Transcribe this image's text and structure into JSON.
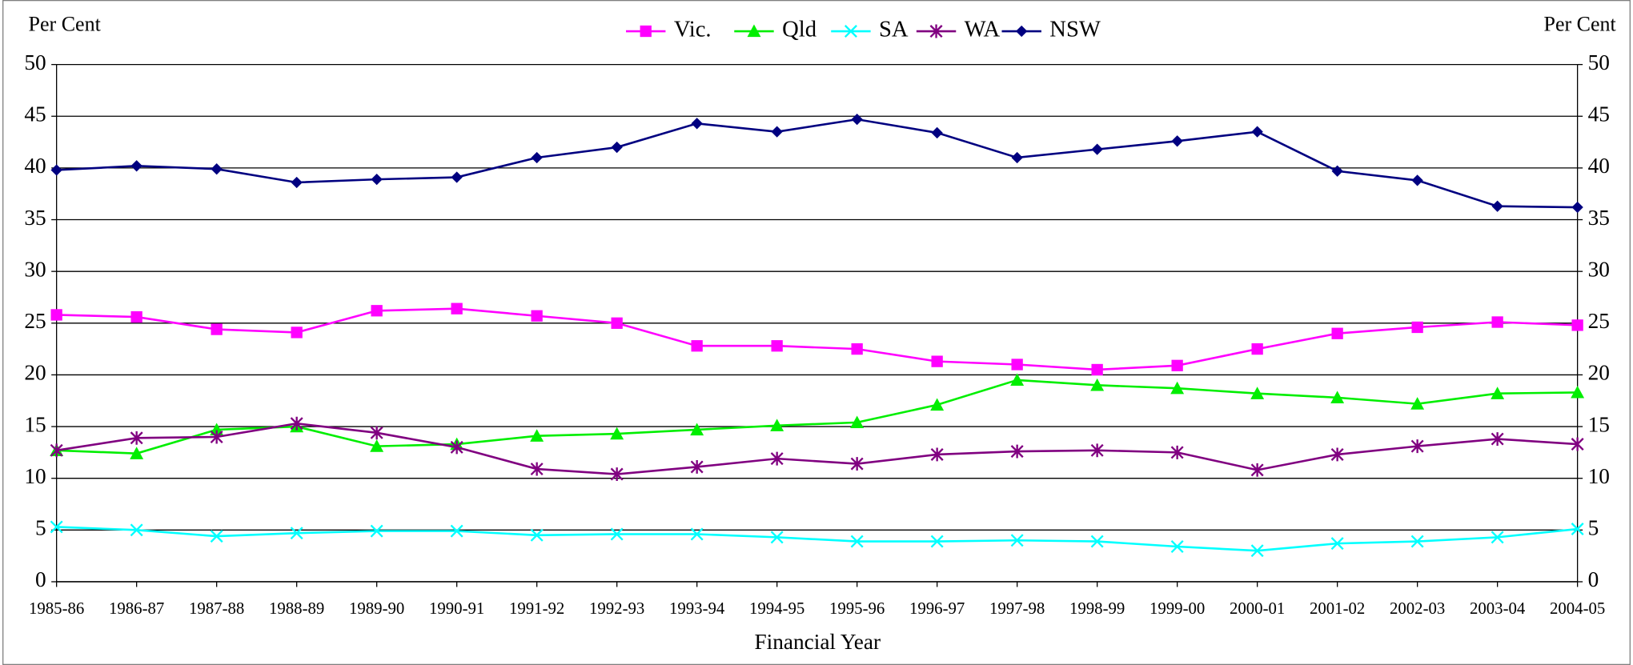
{
  "chart_data": {
    "type": "line",
    "ylabel": "Per Cent",
    "y2label": "Per Cent",
    "xlabel": "Financial Year",
    "categories": [
      "1985-86",
      "1986-87",
      "1987-88",
      "1988-89",
      "1989-90",
      "1990-91",
      "1991-92",
      "1992-93",
      "1993-94",
      "1994-95",
      "1995-96",
      "1996-97",
      "1997-98",
      "1998-99",
      "1999-00",
      "2000-01",
      "2001-02",
      "2002-03",
      "2003-04",
      "2004-05"
    ],
    "ylim": [
      0,
      50
    ],
    "yticks": [
      0,
      5,
      10,
      15,
      20,
      25,
      30,
      35,
      40,
      45,
      50
    ],
    "grid": true,
    "legend": "top",
    "series": [
      {
        "name": "Vic.",
        "color": "#ff00ff",
        "marker": "square",
        "values": [
          25.8,
          25.6,
          24.4,
          24.1,
          26.2,
          26.4,
          25.7,
          25.0,
          22.8,
          22.8,
          22.5,
          21.3,
          21.0,
          20.5,
          20.9,
          22.5,
          24.0,
          24.6,
          25.1,
          24.8
        ]
      },
      {
        "name": "Qld",
        "color": "#00ee00",
        "marker": "triangle",
        "values": [
          12.7,
          12.4,
          14.7,
          15.0,
          13.1,
          13.3,
          14.1,
          14.3,
          14.7,
          15.1,
          15.4,
          17.1,
          19.5,
          19.0,
          18.7,
          18.2,
          17.8,
          17.2,
          18.2,
          18.3
        ]
      },
      {
        "name": "SA",
        "color": "#00ffff",
        "marker": "x",
        "values": [
          5.3,
          5.0,
          4.4,
          4.7,
          4.9,
          4.9,
          4.5,
          4.6,
          4.6,
          4.3,
          3.9,
          3.9,
          4.0,
          3.9,
          3.4,
          3.0,
          3.7,
          3.9,
          4.3,
          5.1
        ]
      },
      {
        "name": "WA",
        "color": "#800080",
        "marker": "star",
        "values": [
          12.7,
          13.9,
          14.0,
          15.3,
          14.4,
          13.0,
          10.9,
          10.4,
          11.1,
          11.9,
          11.4,
          12.3,
          12.6,
          12.7,
          12.5,
          10.8,
          12.3,
          13.1,
          13.8,
          13.3
        ]
      },
      {
        "name": "NSW",
        "color": "#000080",
        "marker": "diamond",
        "values": [
          39.8,
          40.2,
          39.9,
          38.6,
          38.9,
          39.1,
          41.0,
          42.0,
          44.3,
          43.5,
          44.7,
          43.4,
          41.0,
          41.8,
          42.6,
          43.5,
          39.7,
          38.8,
          36.3,
          36.2
        ]
      }
    ]
  }
}
